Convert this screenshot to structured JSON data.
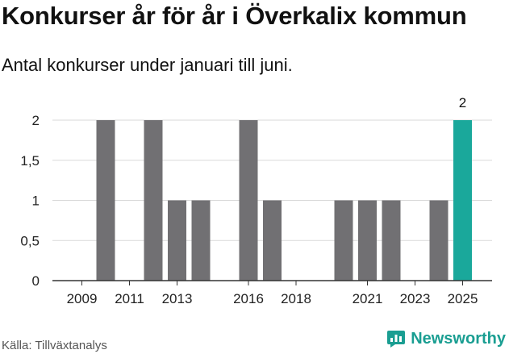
{
  "header": {
    "title": "Konkurser år för år i Överkalix kommun",
    "subtitle": "Antal konkurser under januari till juni."
  },
  "footer": {
    "source": "Källa: Tillväxtanalys",
    "brand": "Newsworthy"
  },
  "colors": {
    "bar": "#717073",
    "highlight": "#1aa89b",
    "grid": "#d9d9d9",
    "axis": "#333333",
    "brand": "#1a9e92"
  },
  "chart_data": {
    "type": "bar",
    "categories": [
      "2009",
      "2010",
      "2011",
      "2012",
      "2013",
      "2014",
      "2015",
      "2016",
      "2017",
      "2018",
      "2019",
      "2020",
      "2021",
      "2022",
      "2023",
      "2024",
      "2025"
    ],
    "values": [
      0,
      2,
      0,
      2,
      1,
      1,
      0,
      2,
      1,
      0,
      0,
      1,
      1,
      1,
      0,
      1,
      2
    ],
    "highlight_category": "2025",
    "highlight_value_label": "2",
    "x_tick_labels": [
      "2009",
      "2011",
      "2013",
      "2016",
      "2018",
      "2021",
      "2023",
      "2025"
    ],
    "y_ticks": [
      {
        "value": 0,
        "label": "0"
      },
      {
        "value": 0.5,
        "label": "0,5"
      },
      {
        "value": 1,
        "label": "1"
      },
      {
        "value": 1.5,
        "label": "1,5"
      },
      {
        "value": 2,
        "label": "2"
      }
    ],
    "ylim": [
      0,
      2
    ],
    "grid": true,
    "xlabel": "",
    "ylabel": ""
  }
}
